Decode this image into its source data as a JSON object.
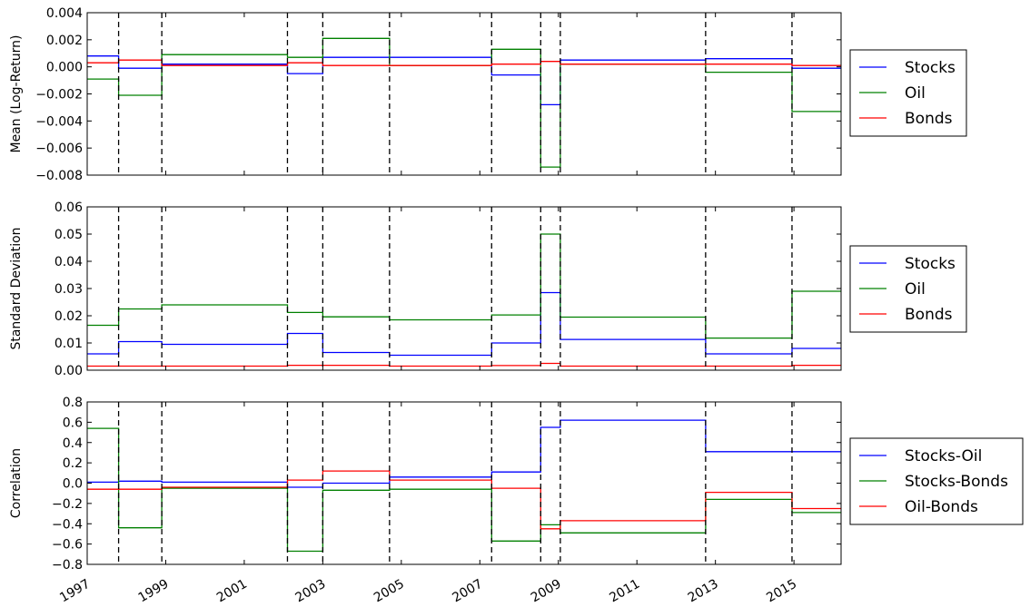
{
  "chart_data": {
    "type": "line",
    "step": true,
    "grid": false,
    "x_range": [
      1997.0,
      2016.2
    ],
    "x_tick_labels": [
      "1997",
      "1999",
      "2001",
      "2003",
      "2005",
      "2007",
      "2009",
      "2011",
      "2013",
      "2015"
    ],
    "x_tick_values": [
      1997,
      1999,
      2001,
      2003,
      2005,
      2007,
      2009,
      2011,
      2013,
      2015
    ],
    "breakpoints": [
      1997.8,
      1998.9,
      2002.1,
      2003.0,
      2004.7,
      2007.3,
      2008.55,
      2009.05,
      2012.75,
      2014.95
    ],
    "legend_position": "outside right",
    "colors": {
      "blue": "#0000ff",
      "green": "#008000",
      "red": "#ff0000",
      "breakpoint_line": "#000000"
    },
    "panels": [
      {
        "ylabel": "Mean (Log-Return)",
        "ylim": [
          -0.008,
          0.004
        ],
        "y_ticks": [
          -0.008,
          -0.006,
          -0.004,
          -0.002,
          0.0,
          0.002,
          0.004
        ],
        "y_tick_labels": [
          "−0.008",
          "−0.006",
          "−0.004",
          "−0.002",
          "0.000",
          "0.002",
          "0.004"
        ],
        "series": [
          {
            "name": "Stocks",
            "color": "#0000ff",
            "values": [
              0.0008,
              -0.0001,
              0.0002,
              -0.0005,
              0.0007,
              0.0007,
              -0.0006,
              -0.0028,
              0.0005,
              0.0006,
              -0.0001
            ]
          },
          {
            "name": "Oil",
            "color": "#008000",
            "values": [
              -0.0009,
              -0.0021,
              0.0009,
              0.0007,
              0.0021,
              0.0001,
              0.0013,
              -0.0074,
              0.0002,
              -0.0004,
              -0.0033
            ]
          },
          {
            "name": "Bonds",
            "color": "#ff0000",
            "values": [
              0.0003,
              0.0005,
              0.0001,
              0.0003,
              0.0001,
              0.0001,
              0.0002,
              0.0004,
              0.0002,
              0.0002,
              0.0001
            ]
          }
        ]
      },
      {
        "ylabel": "Standard Deviation",
        "ylim": [
          0.0,
          0.06
        ],
        "y_ticks": [
          0.0,
          0.01,
          0.02,
          0.03,
          0.04,
          0.05,
          0.06
        ],
        "y_tick_labels": [
          "0.00",
          "0.01",
          "0.02",
          "0.03",
          "0.04",
          "0.05",
          "0.06"
        ],
        "series": [
          {
            "name": "Stocks",
            "color": "#0000ff",
            "values": [
              0.006,
              0.0105,
              0.0095,
              0.0135,
              0.0065,
              0.0055,
              0.01,
              0.0285,
              0.0113,
              0.006,
              0.008
            ]
          },
          {
            "name": "Oil",
            "color": "#008000",
            "values": [
              0.0165,
              0.0225,
              0.024,
              0.0212,
              0.0196,
              0.0185,
              0.0203,
              0.05,
              0.0195,
              0.0118,
              0.029
            ]
          },
          {
            "name": "Bonds",
            "color": "#ff0000",
            "values": [
              0.0015,
              0.0015,
              0.0015,
              0.0018,
              0.0018,
              0.0015,
              0.0017,
              0.0025,
              0.0015,
              0.0015,
              0.0018
            ]
          }
        ]
      },
      {
        "ylabel": "Correlation",
        "ylim": [
          -0.8,
          0.8
        ],
        "y_ticks": [
          -0.8,
          -0.6,
          -0.4,
          -0.2,
          0.0,
          0.2,
          0.4,
          0.6,
          0.8
        ],
        "y_tick_labels": [
          "−0.8",
          "−0.6",
          "−0.4",
          "−0.2",
          "0.0",
          "0.2",
          "0.4",
          "0.6",
          "0.8"
        ],
        "series": [
          {
            "name": "Stocks-Oil",
            "color": "#0000ff",
            "values": [
              0.01,
              0.02,
              0.01,
              -0.04,
              0.0,
              0.06,
              0.11,
              0.55,
              0.62,
              0.31,
              0.31
            ]
          },
          {
            "name": "Stocks-Bonds",
            "color": "#008000",
            "values": [
              0.54,
              -0.44,
              -0.05,
              -0.67,
              -0.07,
              -0.06,
              -0.57,
              -0.41,
              -0.49,
              -0.16,
              -0.29
            ]
          },
          {
            "name": "Oil-Bonds",
            "color": "#ff0000",
            "values": [
              -0.06,
              -0.06,
              -0.04,
              0.03,
              0.12,
              0.03,
              -0.05,
              -0.45,
              -0.37,
              -0.09,
              -0.25
            ]
          }
        ]
      }
    ]
  }
}
